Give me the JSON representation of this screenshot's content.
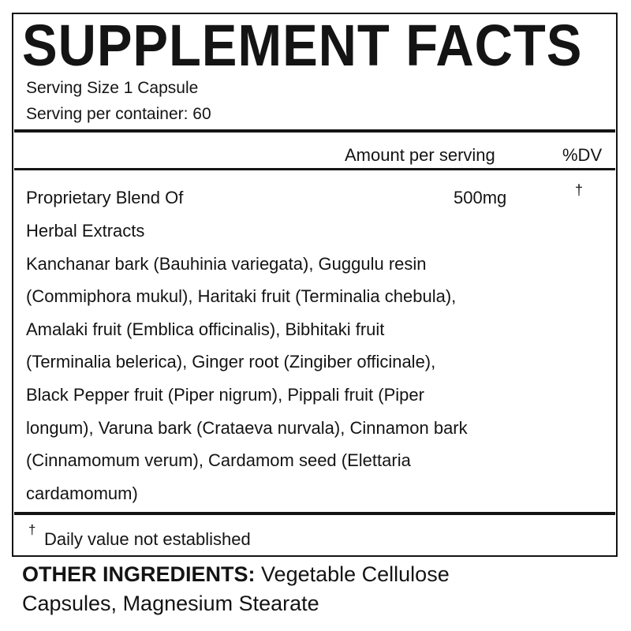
{
  "title": "SUPPLEMENT FACTS",
  "serving_size": "Serving Size 1 Capsule",
  "servings_per_container": "Serving per container: 60",
  "header": {
    "amount": "Amount per serving",
    "dv": "%DV"
  },
  "blend": {
    "name_lines": [
      "Proprietary Blend Of",
      "Herbal Extracts"
    ],
    "amount": "500mg",
    "dv": "†",
    "ingredient_lines": [
      "Kanchanar bark (Bauhinia variegata), Guggulu resin",
      "(Commiphora mukul), Haritaki fruit (Terminalia chebula),",
      "Amalaki fruit (Emblica officinalis), Bibhitaki fruit",
      "(Terminalia belerica), Ginger root (Zingiber officinale),",
      "Black Pepper fruit (Piper nigrum), Pippali fruit (Piper",
      "longum), Varuna bark (Crataeva nurvala), Cinnamon bark",
      "(Cinnamomum verum), Cardamom seed (Elettaria",
      "cardamomum)"
    ]
  },
  "footnote": {
    "symbol": "†",
    "text": "Daily value not established"
  },
  "other_ingredients": {
    "label": "OTHER INGREDIENTS:",
    "line1": "Vegetable Cellulose",
    "line2": "Capsules, Magnesium Stearate"
  }
}
